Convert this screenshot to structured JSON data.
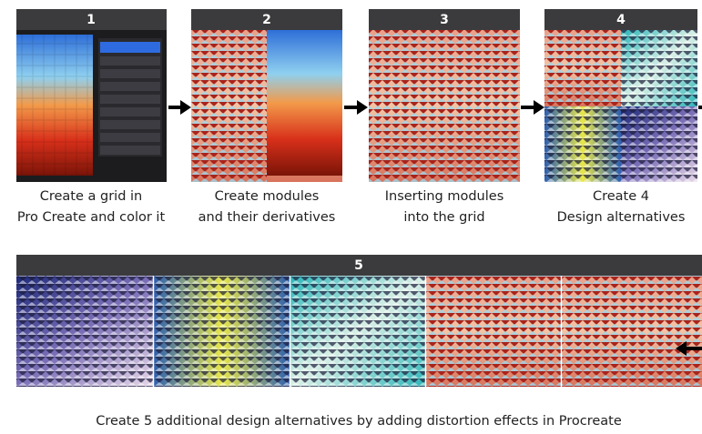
{
  "steps": [
    {
      "number": "1",
      "caption": [
        "Create a grid in",
        "Pro Create and color it"
      ]
    },
    {
      "number": "2",
      "caption": [
        "Create modules",
        "and their derivatives"
      ]
    },
    {
      "number": "3",
      "caption": [
        "Inserting modules",
        "into the grid"
      ]
    },
    {
      "number": "4",
      "caption": [
        "Create 4",
        "Design alternatives"
      ]
    }
  ],
  "final": {
    "number": "5",
    "caption": "Create 5 additional design alternatives by adding distortion effects in Procreate"
  }
}
